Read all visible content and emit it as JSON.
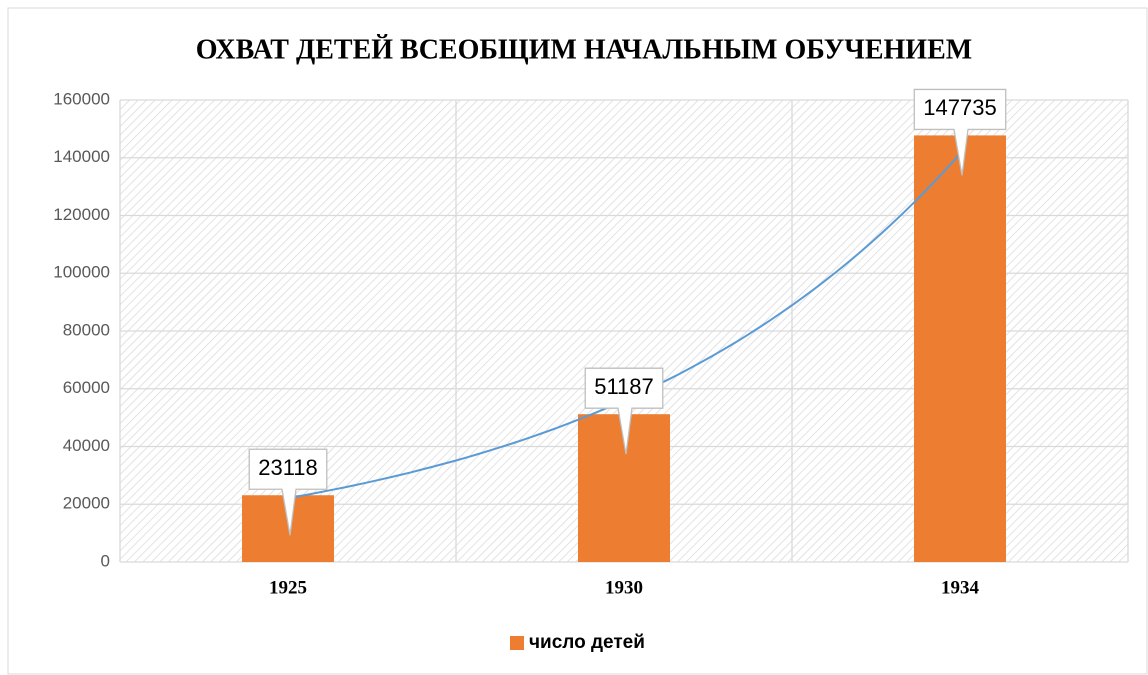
{
  "chart_data": {
    "type": "bar",
    "title": "ОХВАТ ДЕТЕЙ ВСЕОБЩИМ НАЧАЛЬНЫМ ОБУЧЕНИЕМ",
    "categories": [
      "1925",
      "1930",
      "1934"
    ],
    "series": [
      {
        "name": "число детей",
        "color": "#ed7d31",
        "values": [
          23118,
          51187,
          147735
        ]
      }
    ],
    "ylim": [
      0,
      160000
    ],
    "yticks": [
      0,
      20000,
      40000,
      60000,
      80000,
      100000,
      120000,
      140000,
      160000
    ],
    "grid": true,
    "trendline": "exponential",
    "trendline_color": "#5b9bd5",
    "legend": "bottom"
  }
}
